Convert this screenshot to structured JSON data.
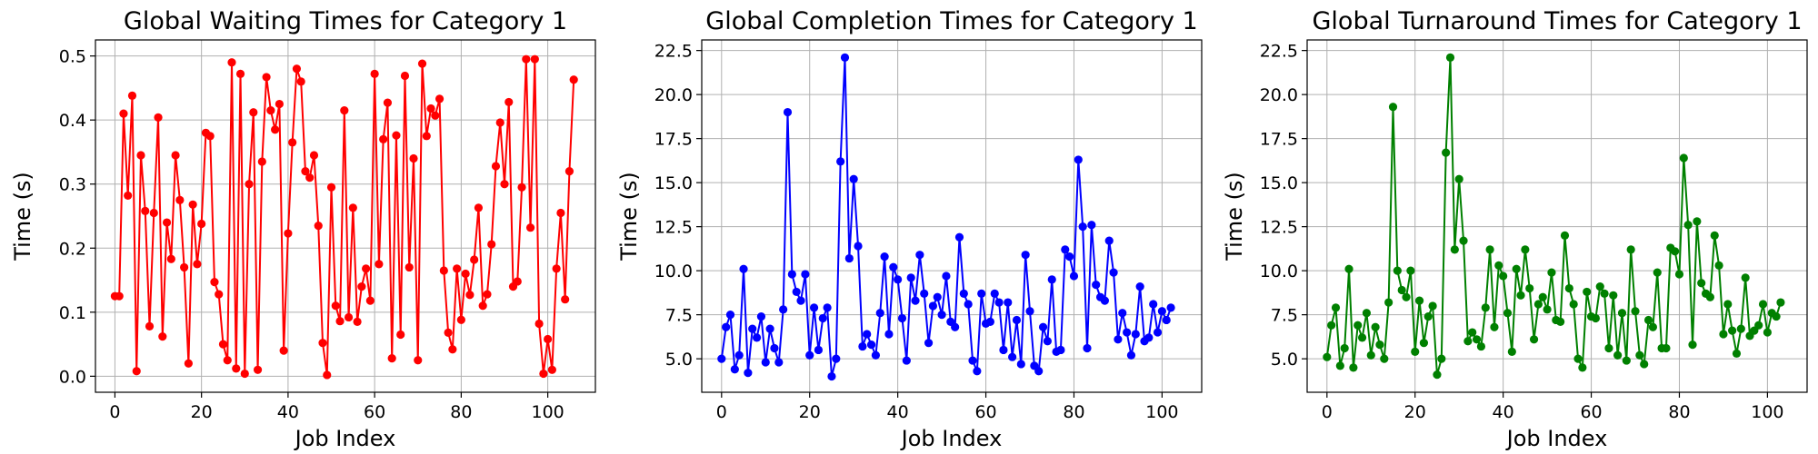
{
  "chart_data": [
    {
      "type": "line",
      "title": "Global Waiting Times for Category 1",
      "xlabel": "Job Index",
      "ylabel": "Time (s)",
      "xlim": [
        -4.5,
        111
      ],
      "ylim": [
        -0.025,
        0.525
      ],
      "xticks": [
        0,
        20,
        40,
        60,
        80,
        100
      ],
      "yticks": [
        0.0,
        0.1,
        0.2,
        0.3,
        0.4,
        0.5
      ],
      "ytick_labels": [
        "0.0",
        "0.1",
        "0.2",
        "0.3",
        "0.4",
        "0.5"
      ],
      "grid": true,
      "color": "#ff0000",
      "series": [
        {
          "values": [
            0.125,
            0.125,
            0.41,
            0.282,
            0.438,
            0.008,
            0.345,
            0.258,
            0.078,
            0.255,
            0.404,
            0.062,
            0.24,
            0.183,
            0.345,
            0.275,
            0.17,
            0.02,
            0.268,
            0.175,
            0.238,
            0.38,
            0.375,
            0.147,
            0.128,
            0.05,
            0.025,
            0.49,
            0.012,
            0.472,
            0.004,
            0.3,
            0.412,
            0.01,
            0.335,
            0.467,
            0.415,
            0.385,
            0.425,
            0.04,
            0.223,
            0.365,
            0.48,
            0.46,
            0.32,
            0.31,
            0.345,
            0.235,
            0.052,
            0.002,
            0.295,
            0.11,
            0.086,
            0.415,
            0.092,
            0.263,
            0.085,
            0.14,
            0.168,
            0.118,
            0.472,
            0.175,
            0.37,
            0.427,
            0.028,
            0.376,
            0.065,
            0.469,
            0.17,
            0.34,
            0.025,
            0.488,
            0.375,
            0.418,
            0.407,
            0.433,
            0.165,
            0.068,
            0.042,
            0.168,
            0.088,
            0.16,
            0.127,
            0.182,
            0.263,
            0.11,
            0.128,
            0.206,
            0.328,
            0.396,
            0.3,
            0.428,
            0.14,
            0.148,
            0.295,
            0.495,
            0.232,
            0.495,
            0.082,
            0.004,
            0.058,
            0.01,
            0.168,
            0.255,
            0.12,
            0.32,
            0.463
          ]
        }
      ]
    },
    {
      "type": "line",
      "title": "Global Completion Times for Category 1",
      "xlabel": "Job Index",
      "ylabel": "Time (s)",
      "xlim": [
        -4.5,
        109
      ],
      "ylim": [
        3.1,
        23.1
      ],
      "xticks": [
        0,
        20,
        40,
        60,
        80,
        100
      ],
      "yticks": [
        5.0,
        7.5,
        10.0,
        12.5,
        15.0,
        17.5,
        20.0,
        22.5
      ],
      "ytick_labels": [
        "5.0",
        "7.5",
        "10.0",
        "12.5",
        "15.0",
        "17.5",
        "20.0",
        "22.5"
      ],
      "grid": true,
      "color": "#0000ff",
      "series": [
        {
          "values": [
            5.0,
            6.8,
            7.5,
            4.4,
            5.2,
            10.1,
            4.2,
            6.7,
            6.2,
            7.4,
            4.8,
            6.7,
            5.6,
            4.8,
            7.8,
            19.0,
            9.8,
            8.8,
            8.3,
            9.8,
            5.2,
            7.9,
            5.5,
            7.3,
            7.9,
            4.0,
            5.0,
            16.2,
            22.1,
            10.7,
            15.2,
            11.4,
            5.7,
            6.4,
            5.8,
            5.2,
            7.6,
            10.8,
            6.4,
            10.2,
            9.5,
            7.3,
            4.9,
            9.6,
            8.3,
            10.9,
            8.7,
            5.9,
            8.0,
            8.5,
            7.5,
            9.7,
            7.1,
            6.8,
            11.9,
            8.7,
            8.1,
            4.9,
            4.3,
            8.7,
            7.0,
            7.1,
            8.7,
            8.2,
            5.5,
            8.2,
            5.1,
            7.2,
            4.7,
            10.9,
            7.7,
            4.6,
            4.3,
            6.8,
            6.0,
            9.5,
            5.4,
            5.5,
            11.2,
            10.8,
            9.7,
            16.3,
            12.5,
            5.6,
            12.6,
            9.2,
            8.5,
            8.3,
            11.7,
            9.9,
            6.1,
            7.6,
            6.5,
            5.2,
            6.4,
            9.1,
            6.0,
            6.2,
            8.1,
            6.5,
            7.7,
            7.2,
            7.9
          ]
        }
      ]
    },
    {
      "type": "line",
      "title": "Global Turnaround Times for Category 1",
      "xlabel": "Job Index",
      "ylabel": "Time (s)",
      "xlim": [
        -4.5,
        109
      ],
      "ylim": [
        3.1,
        23.1
      ],
      "xticks": [
        0,
        20,
        40,
        60,
        80,
        100
      ],
      "yticks": [
        5.0,
        7.5,
        10.0,
        12.5,
        15.0,
        17.5,
        20.0,
        22.5
      ],
      "ytick_labels": [
        "5.0",
        "7.5",
        "10.0",
        "12.5",
        "15.0",
        "17.5",
        "20.0",
        "22.5"
      ],
      "grid": true,
      "color": "#008000",
      "series": [
        {
          "values": [
            5.1,
            6.9,
            7.9,
            4.6,
            5.6,
            10.1,
            4.5,
            6.9,
            6.2,
            7.6,
            5.2,
            6.8,
            5.8,
            5.0,
            8.2,
            19.3,
            10.0,
            8.9,
            8.5,
            10.0,
            5.4,
            8.3,
            5.9,
            7.4,
            8.0,
            4.1,
            5.0,
            16.7,
            22.1,
            11.2,
            15.2,
            11.7,
            6.0,
            6.5,
            6.1,
            5.7,
            7.9,
            11.2,
            6.8,
            10.3,
            9.7,
            7.6,
            5.4,
            10.1,
            8.6,
            11.2,
            9.0,
            6.1,
            8.1,
            8.5,
            7.8,
            9.9,
            7.2,
            7.1,
            12.0,
            9.0,
            8.1,
            5.0,
            4.5,
            8.8,
            7.4,
            7.3,
            9.1,
            8.7,
            5.6,
            8.6,
            5.2,
            7.6,
            4.9,
            11.2,
            7.7,
            5.2,
            4.7,
            7.2,
            6.8,
            9.9,
            5.6,
            5.6,
            11.3,
            11.1,
            9.8,
            16.4,
            12.6,
            5.8,
            12.8,
            9.3,
            8.7,
            8.5,
            12.0,
            10.3,
            6.4,
            8.1,
            6.6,
            5.3,
            6.7,
            9.6,
            6.3,
            6.6,
            6.9,
            8.1,
            6.5,
            7.6,
            7.4,
            8.2
          ]
        }
      ]
    }
  ]
}
